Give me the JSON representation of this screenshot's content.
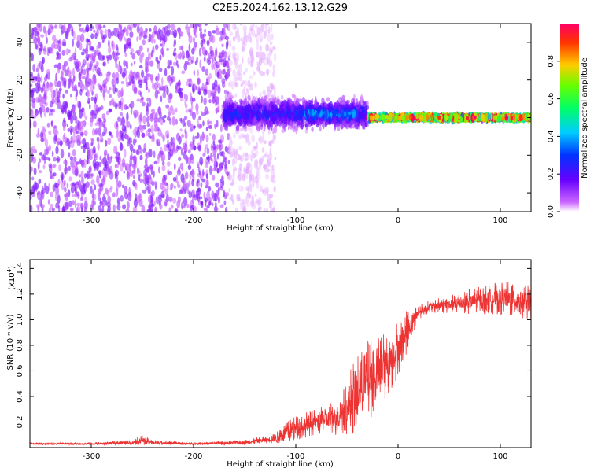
{
  "title": "C2E5.2024.162.13.12.G29",
  "chart_data": [
    {
      "type": "heatmap",
      "description_role": "spectrogram",
      "xlabel": "Height of straight line (km)",
      "ylabel": "Frequency (Hz)",
      "xlim": [
        -360,
        130
      ],
      "ylim": [
        -50,
        50
      ],
      "xticks": [
        -300,
        -200,
        -100,
        0,
        100
      ],
      "xtick_labels": [
        "-300",
        "-200",
        "-100",
        "0",
        "100"
      ],
      "yticks": [
        -40,
        -20,
        0,
        20,
        40
      ],
      "ytick_labels": [
        "-40",
        "-20",
        "0",
        "20",
        "40"
      ],
      "colorbar": {
        "label": "Normalized spectral amplitude",
        "range": [
          0,
          1
        ],
        "ticks": [
          0.0,
          0.2,
          0.4,
          0.6,
          0.8
        ],
        "tick_labels": [
          "0.0",
          "0.2",
          "0.4",
          "0.6",
          "0.8"
        ],
        "colors": [
          "#ffffff",
          "#cc66ff",
          "#6600ff",
          "#0033ff",
          "#00ccff",
          "#00ff66",
          "#66ff00",
          "#ffcc00",
          "#ff3300",
          "#ff0066"
        ]
      },
      "regions": [
        {
          "x_range": [
            -360,
            -165
          ],
          "freq_range": [
            -50,
            50
          ],
          "amplitude": 0.15,
          "note": "broadband noise"
        },
        {
          "x_range": [
            -165,
            -120
          ],
          "freq_range": [
            -50,
            50
          ],
          "amplitude": 0.05,
          "note": "faint broadband noise"
        },
        {
          "x_range": [
            -170,
            -30
          ],
          "freq_center": 2,
          "freq_halfwidth": 10,
          "amplitude": 0.3
        },
        {
          "x_range": [
            -90,
            -40
          ],
          "freq_center": 2,
          "freq_halfwidth": 5,
          "amplitude": 0.4
        },
        {
          "x_range": [
            -30,
            130
          ],
          "freq_center": 0,
          "freq_halfwidth": 1.5,
          "amplitude": 0.95
        }
      ],
      "grid": false
    },
    {
      "type": "line",
      "xlabel": "Height of straight line (km)",
      "ylabel": "SNR (10 * v/v)",
      "y_multiplier": "(x10",
      "y_multiplier_exponent": "4",
      "y_multiplier_close": ")",
      "xlim": [
        -360,
        130
      ],
      "ylim": [
        0,
        1.47
      ],
      "xticks": [
        -300,
        -200,
        -100,
        0,
        100
      ],
      "xtick_labels": [
        "-300",
        "-200",
        "-100",
        "0",
        "100"
      ],
      "yticks": [
        0.2,
        0.4,
        0.6,
        0.8,
        1.0,
        1.2,
        1.4
      ],
      "ytick_labels": [
        "0.2",
        "0.4",
        "0.6",
        "0.8",
        "1.0",
        "1.2",
        "1.4"
      ],
      "series": [
        {
          "color": "#ee3333",
          "x": [
            -360,
            -300,
            -260,
            -250,
            -240,
            -200,
            -150,
            -120,
            -110,
            -100,
            -90,
            -80,
            -70,
            -60,
            -50,
            -45,
            -40,
            -35,
            -30,
            -25,
            -20,
            -15,
            -10,
            -5,
            0,
            5,
            10,
            15,
            20,
            25,
            30,
            40,
            50,
            60,
            70,
            80,
            90,
            100,
            110,
            120,
            130
          ],
          "y": [
            0.03,
            0.03,
            0.04,
            0.06,
            0.04,
            0.03,
            0.04,
            0.07,
            0.12,
            0.15,
            0.18,
            0.2,
            0.22,
            0.24,
            0.3,
            0.38,
            0.42,
            0.48,
            0.52,
            0.55,
            0.58,
            0.62,
            0.66,
            0.72,
            0.78,
            0.85,
            0.93,
            1.0,
            1.06,
            1.08,
            1.1,
            1.11,
            1.12,
            1.13,
            1.14,
            1.15,
            1.16,
            1.17,
            1.16,
            1.15,
            1.13
          ],
          "noise_amplitude": [
            0.01,
            0.01,
            0.02,
            0.04,
            0.02,
            0.01,
            0.02,
            0.04,
            0.08,
            0.1,
            0.1,
            0.1,
            0.12,
            0.15,
            0.2,
            0.28,
            0.3,
            0.3,
            0.32,
            0.3,
            0.3,
            0.3,
            0.25,
            0.25,
            0.22,
            0.2,
            0.15,
            0.1,
            0.06,
            0.05,
            0.05,
            0.06,
            0.07,
            0.08,
            0.1,
            0.11,
            0.12,
            0.13,
            0.14,
            0.14,
            0.14
          ]
        }
      ],
      "grid": false
    }
  ]
}
